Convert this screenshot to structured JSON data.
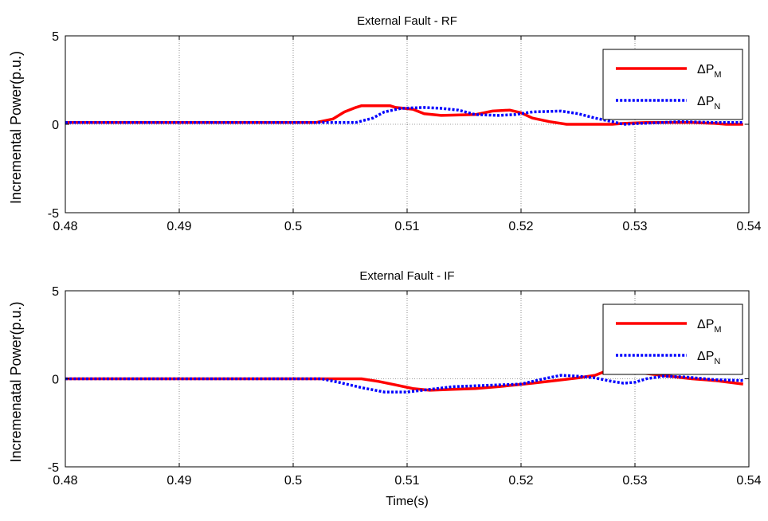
{
  "chart_data": [
    {
      "type": "line",
      "title": "External Fault - RF",
      "xlabel": "",
      "ylabel": "Incremental Power(p.u.)",
      "xlim": [
        0.48,
        0.54
      ],
      "ylim": [
        -5,
        5
      ],
      "x_ticks": [
        "0.48",
        "0.49",
        "0.5",
        "0.51",
        "0.52",
        "0.53",
        "0.54"
      ],
      "y_ticks": [
        "-5",
        "0",
        "5"
      ],
      "grid": true,
      "legend_position": "top-right",
      "series": [
        {
          "name": "ΔP",
          "name_sub": "M",
          "color": "#ff0000",
          "style": "solid",
          "x": [
            0.48,
            0.502,
            0.5035,
            0.5045,
            0.5055,
            0.506,
            0.5065,
            0.5085,
            0.509,
            0.5105,
            0.5115,
            0.513,
            0.516,
            0.5175,
            0.519,
            0.52,
            0.521,
            0.5225,
            0.524,
            0.525,
            0.526,
            0.528,
            0.529,
            0.531,
            0.535,
            0.537,
            0.538,
            0.5395
          ],
          "y": [
            0.1,
            0.1,
            0.3,
            0.7,
            0.95,
            1.05,
            1.05,
            1.05,
            0.95,
            0.85,
            0.6,
            0.5,
            0.55,
            0.75,
            0.8,
            0.65,
            0.35,
            0.15,
            0.0,
            0.0,
            0.0,
            0.0,
            0.05,
            0.1,
            0.1,
            0.05,
            0.0,
            0.0
          ]
        },
        {
          "name": "ΔP",
          "name_sub": "N",
          "color": "#0000ff",
          "style": "dotted",
          "x": [
            0.48,
            0.5055,
            0.507,
            0.508,
            0.5095,
            0.5115,
            0.513,
            0.5145,
            0.516,
            0.518,
            0.5195,
            0.521,
            0.5235,
            0.525,
            0.5265,
            0.528,
            0.529,
            0.5305,
            0.5325,
            0.534,
            0.537,
            0.5395
          ],
          "y": [
            0.1,
            0.1,
            0.35,
            0.7,
            0.9,
            0.95,
            0.9,
            0.8,
            0.55,
            0.5,
            0.55,
            0.7,
            0.75,
            0.6,
            0.35,
            0.15,
            0.0,
            0.05,
            0.1,
            0.15,
            0.1,
            0.1
          ]
        }
      ]
    },
    {
      "type": "line",
      "title": "External Fault - IF",
      "xlabel": "Time(s)",
      "ylabel": "Incremenatal Power(p.u.)",
      "xlim": [
        0.48,
        0.54
      ],
      "ylim": [
        -5,
        5
      ],
      "x_ticks": [
        "0.48",
        "0.49",
        "0.5",
        "0.51",
        "0.52",
        "0.53",
        "0.54"
      ],
      "y_ticks": [
        "-5",
        "0",
        "5"
      ],
      "grid": true,
      "legend_position": "top-right",
      "series": [
        {
          "name": "ΔP",
          "name_sub": "M",
          "color": "#ff0000",
          "style": "solid",
          "x": [
            0.48,
            0.506,
            0.5075,
            0.509,
            0.5105,
            0.512,
            0.514,
            0.516,
            0.518,
            0.5195,
            0.521,
            0.523,
            0.525,
            0.5265,
            0.5275,
            0.528,
            0.5295,
            0.531,
            0.533,
            0.535,
            0.537,
            0.5395
          ],
          "y": [
            0.0,
            0.0,
            -0.15,
            -0.35,
            -0.55,
            -0.65,
            -0.6,
            -0.55,
            -0.45,
            -0.35,
            -0.25,
            -0.1,
            0.05,
            0.2,
            0.45,
            0.55,
            0.5,
            0.3,
            0.15,
            0.0,
            -0.1,
            -0.3
          ]
        },
        {
          "name": "ΔP",
          "name_sub": "N",
          "color": "#0000ff",
          "style": "dotted",
          "x": [
            0.48,
            0.5025,
            0.504,
            0.506,
            0.508,
            0.51,
            0.512,
            0.514,
            0.516,
            0.518,
            0.52,
            0.522,
            0.5235,
            0.525,
            0.5265,
            0.528,
            0.529,
            0.53,
            0.531,
            0.5325,
            0.5345,
            0.537,
            0.5395
          ],
          "y": [
            0.0,
            0.0,
            -0.2,
            -0.5,
            -0.75,
            -0.75,
            -0.6,
            -0.45,
            -0.4,
            -0.35,
            -0.3,
            0.0,
            0.2,
            0.15,
            0.05,
            -0.15,
            -0.25,
            -0.2,
            0.0,
            0.15,
            0.1,
            -0.05,
            -0.1
          ]
        }
      ]
    }
  ]
}
